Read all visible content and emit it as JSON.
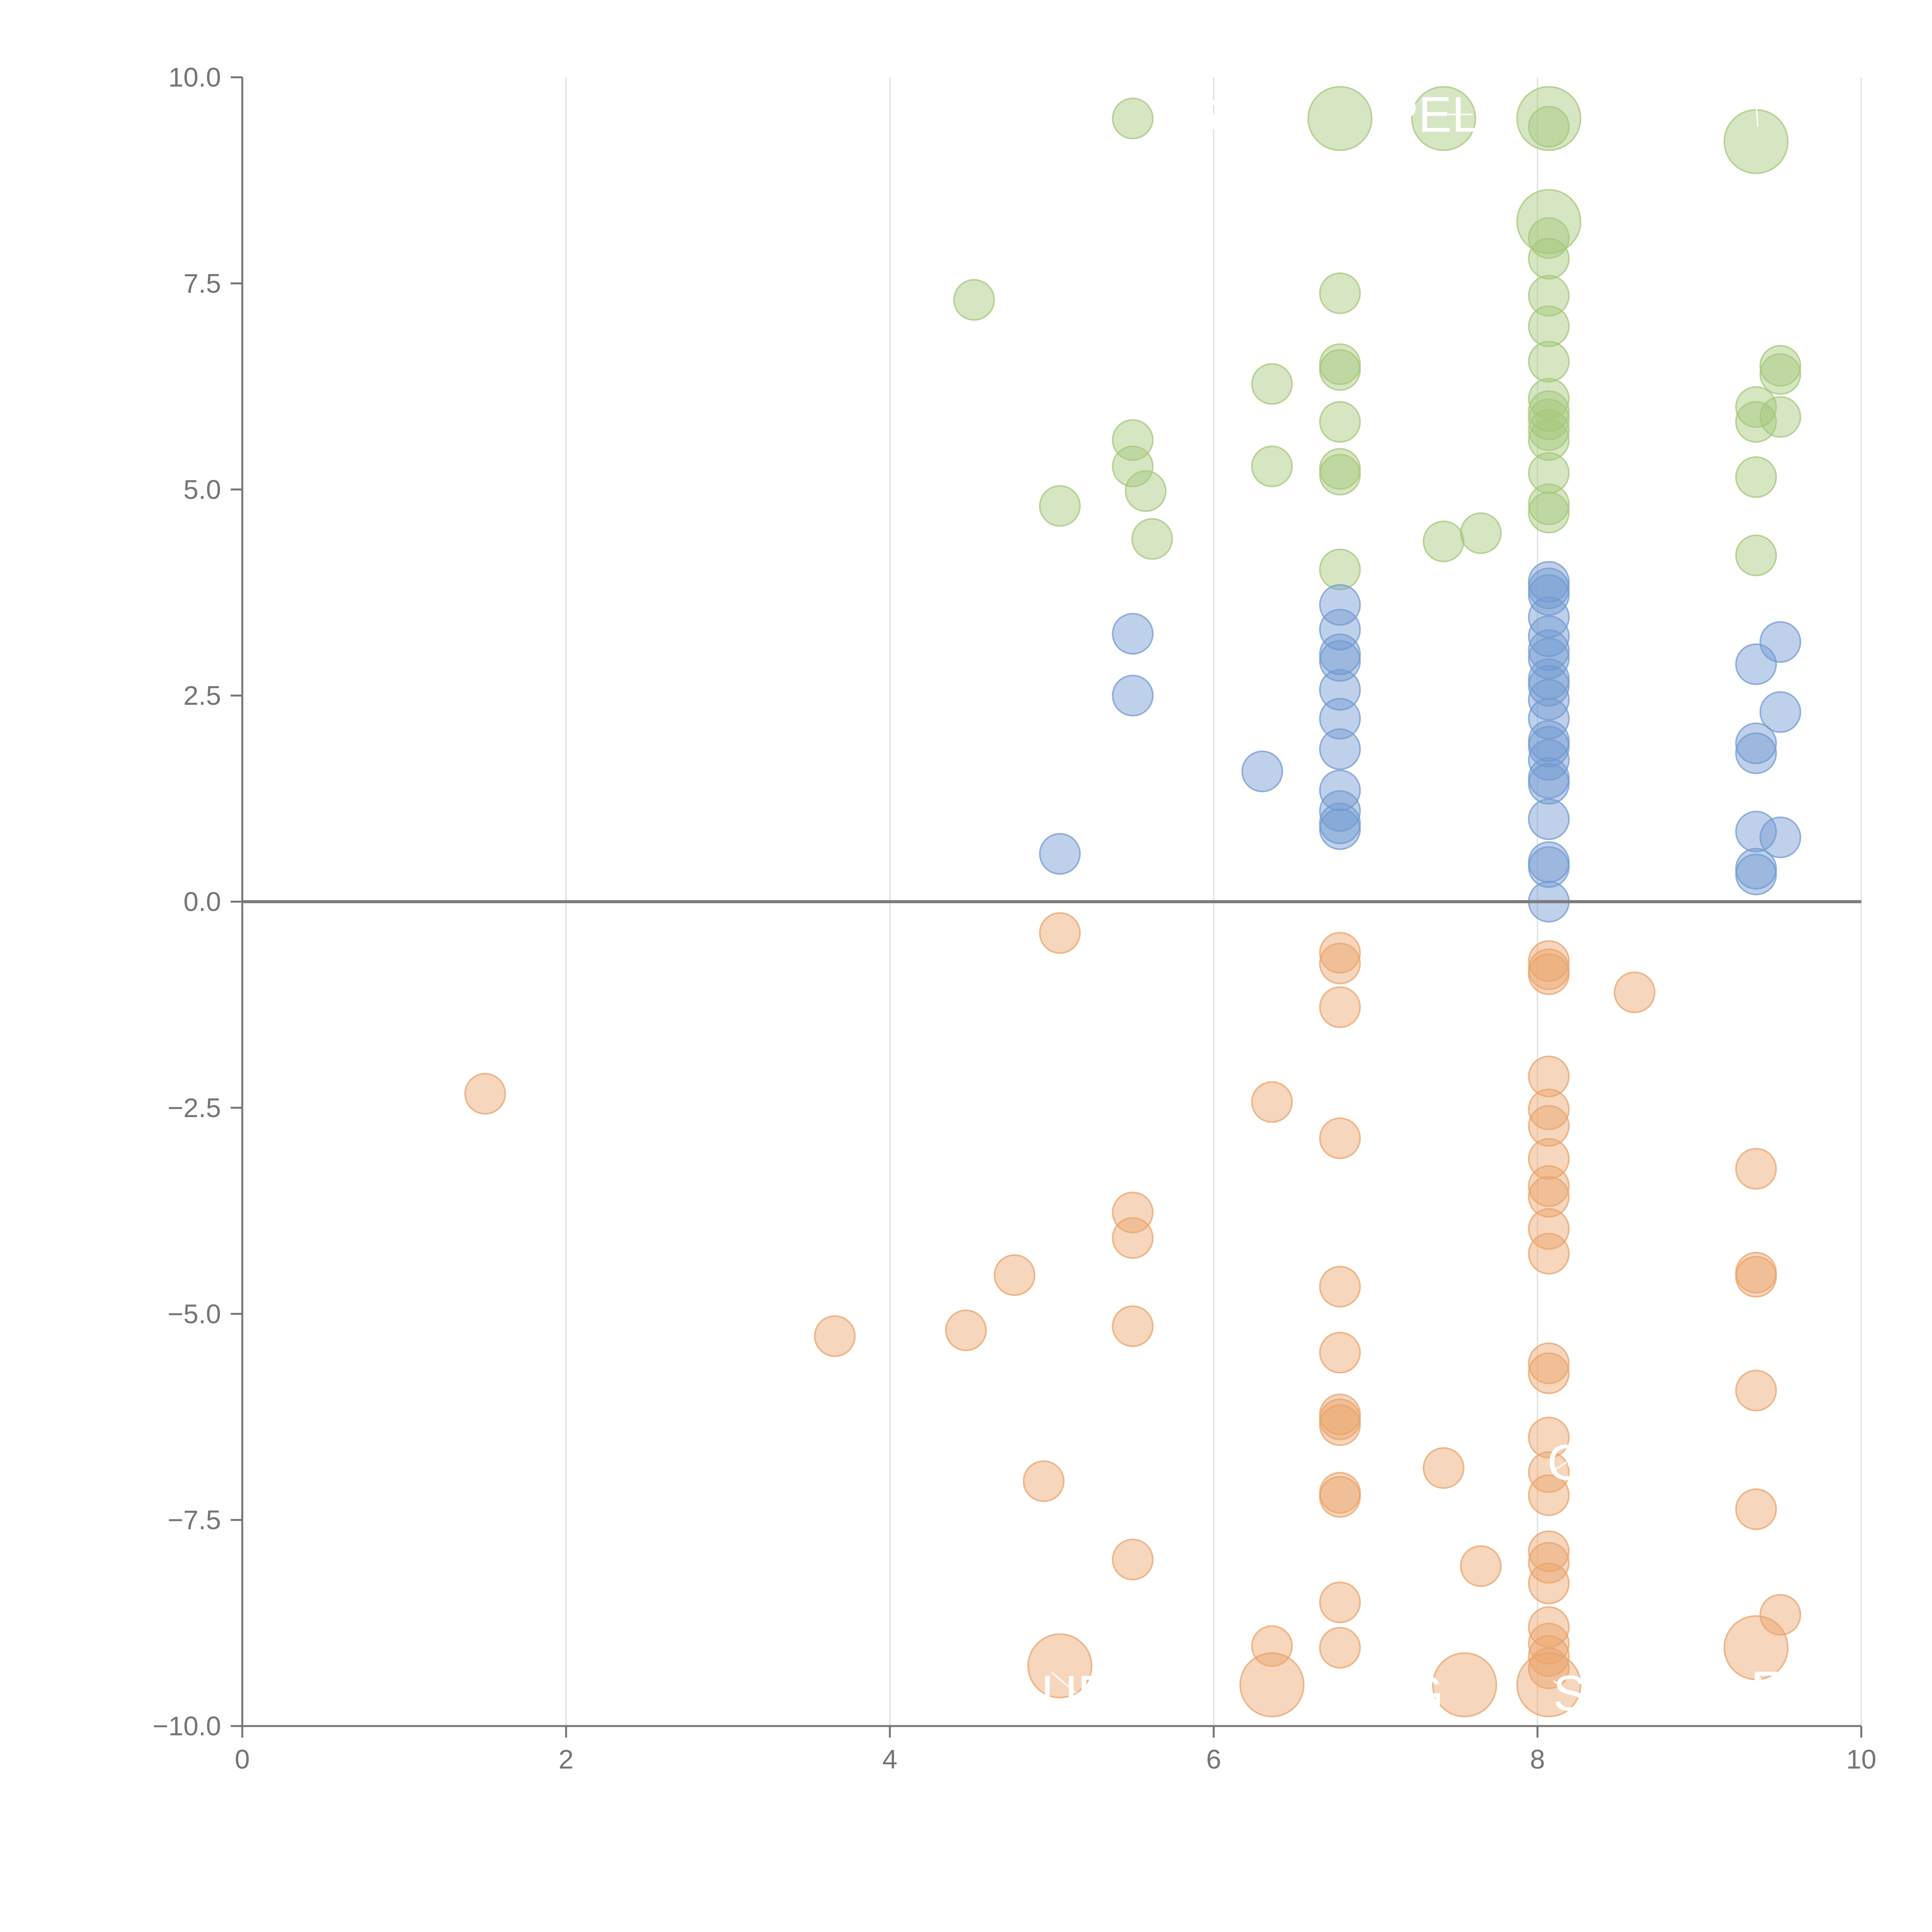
{
  "chart_data": {
    "type": "scatter",
    "title": "",
    "xlabel": "",
    "ylabel": "",
    "xlim": [
      0,
      10
    ],
    "ylim": [
      -10,
      10
    ],
    "grid": "vertical",
    "x_ticks": [
      0,
      2,
      4,
      6,
      8,
      10
    ],
    "y_ticks": [
      -10,
      -7.5,
      -5,
      -2.5,
      0,
      2.5,
      5,
      7.5,
      10
    ],
    "x_tick_labels": [
      "0",
      "2",
      "4",
      "6",
      "8",
      "10"
    ],
    "y_tick_labels": [
      "−10.0",
      "−7.5",
      "−5.0",
      "−2.5",
      "0.0",
      "2.5",
      "5.0",
      "7.5",
      "10.0"
    ],
    "colors": {
      "positive_high": "#a5c77b",
      "positive_low": "#7199d1",
      "negative": "#eaa36a",
      "axis": "#757575",
      "zero_line": "#7b7b7b",
      "grid": "#dddddd"
    },
    "series": [
      {
        "name": "positive_high",
        "color": "#a5c77b",
        "points": [
          {
            "x": 5.5,
            "y": 9.5,
            "size": 1
          },
          {
            "x": 6.78,
            "y": 9.5,
            "size": 2.5
          },
          {
            "x": 7.42,
            "y": 9.5,
            "size": 2.5
          },
          {
            "x": 8.07,
            "y": 9.5,
            "size": 2.5
          },
          {
            "x": 8.07,
            "y": 9.4,
            "size": 1
          },
          {
            "x": 9.35,
            "y": 9.22,
            "size": 2.5
          },
          {
            "x": 8.07,
            "y": 8.25,
            "size": 2.5
          },
          {
            "x": 8.07,
            "y": 8.05,
            "size": 1
          },
          {
            "x": 8.07,
            "y": 7.8,
            "size": 1
          },
          {
            "x": 4.52,
            "y": 7.3,
            "size": 1
          },
          {
            "x": 6.78,
            "y": 7.38,
            "size": 1
          },
          {
            "x": 8.07,
            "y": 7.35,
            "size": 1
          },
          {
            "x": 8.07,
            "y": 6.98,
            "size": 1
          },
          {
            "x": 8.07,
            "y": 6.55,
            "size": 1
          },
          {
            "x": 6.78,
            "y": 6.52,
            "size": 1
          },
          {
            "x": 6.78,
            "y": 6.45,
            "size": 1
          },
          {
            "x": 9.5,
            "y": 6.5,
            "size": 1
          },
          {
            "x": 9.5,
            "y": 6.4,
            "size": 1
          },
          {
            "x": 6.36,
            "y": 6.28,
            "size": 1
          },
          {
            "x": 8.07,
            "y": 6.1,
            "size": 1
          },
          {
            "x": 8.07,
            "y": 5.95,
            "size": 1
          },
          {
            "x": 8.07,
            "y": 5.85,
            "size": 1
          },
          {
            "x": 9.35,
            "y": 6.0,
            "size": 1
          },
          {
            "x": 9.35,
            "y": 5.82,
            "size": 1
          },
          {
            "x": 9.5,
            "y": 5.88,
            "size": 1
          },
          {
            "x": 6.78,
            "y": 5.82,
            "size": 1
          },
          {
            "x": 8.07,
            "y": 5.72,
            "size": 1
          },
          {
            "x": 8.07,
            "y": 5.6,
            "size": 1
          },
          {
            "x": 5.5,
            "y": 5.6,
            "size": 1
          },
          {
            "x": 5.5,
            "y": 5.28,
            "size": 1
          },
          {
            "x": 6.36,
            "y": 5.28,
            "size": 1
          },
          {
            "x": 6.78,
            "y": 5.25,
            "size": 1
          },
          {
            "x": 6.78,
            "y": 5.18,
            "size": 1
          },
          {
            "x": 8.07,
            "y": 5.2,
            "size": 1
          },
          {
            "x": 9.35,
            "y": 5.15,
            "size": 1
          },
          {
            "x": 5.58,
            "y": 4.98,
            "size": 1
          },
          {
            "x": 5.05,
            "y": 4.8,
            "size": 1
          },
          {
            "x": 8.07,
            "y": 4.82,
            "size": 1
          },
          {
            "x": 8.07,
            "y": 4.72,
            "size": 1
          },
          {
            "x": 7.65,
            "y": 4.47,
            "size": 1
          },
          {
            "x": 5.62,
            "y": 4.4,
            "size": 1
          },
          {
            "x": 7.42,
            "y": 4.37,
            "size": 1
          },
          {
            "x": 9.35,
            "y": 4.2,
            "size": 1
          },
          {
            "x": 6.78,
            "y": 4.03,
            "size": 1
          }
        ]
      },
      {
        "name": "positive_low",
        "color": "#7199d1",
        "points": [
          {
            "x": 8.07,
            "y": 3.88,
            "size": 1
          },
          {
            "x": 8.07,
            "y": 3.8,
            "size": 1
          },
          {
            "x": 8.07,
            "y": 3.72,
            "size": 1
          },
          {
            "x": 6.78,
            "y": 3.6,
            "size": 1
          },
          {
            "x": 8.07,
            "y": 3.45,
            "size": 1
          },
          {
            "x": 6.78,
            "y": 3.3,
            "size": 1
          },
          {
            "x": 5.5,
            "y": 3.25,
            "size": 1
          },
          {
            "x": 8.07,
            "y": 3.22,
            "size": 1
          },
          {
            "x": 9.5,
            "y": 3.15,
            "size": 1
          },
          {
            "x": 8.07,
            "y": 3.05,
            "size": 1
          },
          {
            "x": 6.78,
            "y": 3.0,
            "size": 1
          },
          {
            "x": 6.78,
            "y": 2.92,
            "size": 1
          },
          {
            "x": 8.07,
            "y": 2.95,
            "size": 1
          },
          {
            "x": 9.35,
            "y": 2.88,
            "size": 1
          },
          {
            "x": 8.07,
            "y": 2.7,
            "size": 1
          },
          {
            "x": 8.07,
            "y": 2.62,
            "size": 1
          },
          {
            "x": 6.78,
            "y": 2.57,
            "size": 1
          },
          {
            "x": 5.5,
            "y": 2.5,
            "size": 1
          },
          {
            "x": 8.07,
            "y": 2.45,
            "size": 1
          },
          {
            "x": 9.5,
            "y": 2.3,
            "size": 1
          },
          {
            "x": 6.78,
            "y": 2.22,
            "size": 1
          },
          {
            "x": 8.07,
            "y": 2.22,
            "size": 1
          },
          {
            "x": 8.07,
            "y": 1.95,
            "size": 1
          },
          {
            "x": 8.07,
            "y": 1.88,
            "size": 1
          },
          {
            "x": 9.35,
            "y": 1.92,
            "size": 1
          },
          {
            "x": 6.78,
            "y": 1.85,
            "size": 1
          },
          {
            "x": 9.35,
            "y": 1.8,
            "size": 1
          },
          {
            "x": 8.07,
            "y": 1.72,
            "size": 1
          },
          {
            "x": 6.3,
            "y": 1.58,
            "size": 1
          },
          {
            "x": 8.07,
            "y": 1.5,
            "size": 1
          },
          {
            "x": 8.07,
            "y": 1.43,
            "size": 1
          },
          {
            "x": 6.78,
            "y": 1.35,
            "size": 1
          },
          {
            "x": 6.78,
            "y": 1.1,
            "size": 1
          },
          {
            "x": 8.07,
            "y": 1.0,
            "size": 1
          },
          {
            "x": 6.78,
            "y": 0.95,
            "size": 1
          },
          {
            "x": 6.78,
            "y": 0.88,
            "size": 1
          },
          {
            "x": 9.35,
            "y": 0.85,
            "size": 1
          },
          {
            "x": 9.5,
            "y": 0.78,
            "size": 1
          },
          {
            "x": 5.05,
            "y": 0.58,
            "size": 1
          },
          {
            "x": 8.07,
            "y": 0.48,
            "size": 1
          },
          {
            "x": 8.07,
            "y": 0.42,
            "size": 1
          },
          {
            "x": 9.35,
            "y": 0.4,
            "size": 1
          },
          {
            "x": 9.35,
            "y": 0.33,
            "size": 1
          },
          {
            "x": 8.07,
            "y": 0.0,
            "size": 1
          }
        ]
      },
      {
        "name": "negative",
        "color": "#eaa36a",
        "points": [
          {
            "x": 5.05,
            "y": -0.38,
            "size": 1
          },
          {
            "x": 6.78,
            "y": -0.62,
            "size": 1
          },
          {
            "x": 6.78,
            "y": -0.75,
            "size": 1
          },
          {
            "x": 8.07,
            "y": -0.72,
            "size": 1
          },
          {
            "x": 8.07,
            "y": -0.82,
            "size": 1
          },
          {
            "x": 8.07,
            "y": -0.88,
            "size": 1
          },
          {
            "x": 8.6,
            "y": -1.1,
            "size": 1
          },
          {
            "x": 6.78,
            "y": -1.28,
            "size": 1
          },
          {
            "x": 8.07,
            "y": -2.12,
            "size": 1
          },
          {
            "x": 1.5,
            "y": -2.33,
            "size": 1
          },
          {
            "x": 6.36,
            "y": -2.43,
            "size": 1
          },
          {
            "x": 8.07,
            "y": -2.52,
            "size": 1
          },
          {
            "x": 8.07,
            "y": -2.72,
            "size": 1
          },
          {
            "x": 6.78,
            "y": -2.87,
            "size": 1
          },
          {
            "x": 8.07,
            "y": -3.12,
            "size": 1
          },
          {
            "x": 9.35,
            "y": -3.24,
            "size": 1
          },
          {
            "x": 8.07,
            "y": -3.45,
            "size": 1
          },
          {
            "x": 8.07,
            "y": -3.58,
            "size": 1
          },
          {
            "x": 5.5,
            "y": -3.77,
            "size": 1
          },
          {
            "x": 8.07,
            "y": -3.97,
            "size": 1
          },
          {
            "x": 5.5,
            "y": -4.08,
            "size": 1
          },
          {
            "x": 8.07,
            "y": -4.27,
            "size": 1
          },
          {
            "x": 9.35,
            "y": -4.5,
            "size": 1
          },
          {
            "x": 9.35,
            "y": -4.55,
            "size": 1
          },
          {
            "x": 4.77,
            "y": -4.53,
            "size": 1
          },
          {
            "x": 6.78,
            "y": -4.67,
            "size": 1
          },
          {
            "x": 5.5,
            "y": -5.15,
            "size": 1
          },
          {
            "x": 4.47,
            "y": -5.2,
            "size": 1
          },
          {
            "x": 3.66,
            "y": -5.27,
            "size": 1
          },
          {
            "x": 6.78,
            "y": -5.47,
            "size": 1
          },
          {
            "x": 8.07,
            "y": -5.6,
            "size": 1
          },
          {
            "x": 8.07,
            "y": -5.72,
            "size": 1
          },
          {
            "x": 9.35,
            "y": -5.93,
            "size": 1
          },
          {
            "x": 6.78,
            "y": -6.22,
            "size": 1
          },
          {
            "x": 6.78,
            "y": -6.28,
            "size": 1
          },
          {
            "x": 6.78,
            "y": -6.35,
            "size": 1
          },
          {
            "x": 8.07,
            "y": -6.5,
            "size": 1
          },
          {
            "x": 7.42,
            "y": -6.87,
            "size": 1
          },
          {
            "x": 8.07,
            "y": -6.92,
            "size": 1
          },
          {
            "x": 4.95,
            "y": -7.03,
            "size": 1
          },
          {
            "x": 6.78,
            "y": -7.17,
            "size": 1
          },
          {
            "x": 6.78,
            "y": -7.22,
            "size": 1
          },
          {
            "x": 8.07,
            "y": -7.2,
            "size": 1
          },
          {
            "x": 9.35,
            "y": -7.37,
            "size": 1
          },
          {
            "x": 8.07,
            "y": -7.88,
            "size": 1
          },
          {
            "x": 8.07,
            "y": -8.02,
            "size": 1
          },
          {
            "x": 5.5,
            "y": -7.98,
            "size": 1
          },
          {
            "x": 7.65,
            "y": -8.06,
            "size": 1
          },
          {
            "x": 8.07,
            "y": -8.27,
            "size": 1
          },
          {
            "x": 6.78,
            "y": -8.5,
            "size": 1
          },
          {
            "x": 9.5,
            "y": -8.65,
            "size": 1
          },
          {
            "x": 8.07,
            "y": -8.8,
            "size": 1
          },
          {
            "x": 6.36,
            "y": -9.03,
            "size": 1
          },
          {
            "x": 6.78,
            "y": -9.05,
            "size": 1
          },
          {
            "x": 8.07,
            "y": -9.0,
            "size": 1
          },
          {
            "x": 8.07,
            "y": -9.15,
            "size": 1
          },
          {
            "x": 9.35,
            "y": -9.05,
            "size": 2.5
          },
          {
            "x": 5.05,
            "y": -9.27,
            "size": 2.5
          },
          {
            "x": 8.07,
            "y": -9.3,
            "size": 1
          },
          {
            "x": 6.36,
            "y": -9.5,
            "size": 2.5
          },
          {
            "x": 7.55,
            "y": -9.5,
            "size": 2.5
          },
          {
            "x": 8.07,
            "y": -9.5,
            "size": 2.5
          }
        ]
      }
    ],
    "annotations": [
      {
        "text": "S",
        "x": 5.93,
        "y": 9.55,
        "tx": 6.2,
        "ty": 9.55
      },
      {
        "text": "PEL",
        "x": 7.35,
        "y": 9.55,
        "tx": 7.6,
        "ty": 9.55
      },
      {
        "text": "'",
        "x": 9.35,
        "y": 9.75,
        "tx": 9.36,
        "ty": 9.4
      },
      {
        "text": "UE",
        "x": 5.15,
        "y": -9.6,
        "tx": 5.0,
        "ty": -9.35
      },
      {
        "text": "G",
        "x": 7.3,
        "y": -9.6,
        "tx": 6.95,
        "ty": -9.55
      },
      {
        "text": "S",
        "x": 8.2,
        "y": -9.6,
        "tx": 8.1,
        "ty": -9.45
      },
      {
        "text": "G",
        "x": 8.18,
        "y": -6.8,
        "tx": 8.1,
        "ty": -6.9
      },
      {
        "text": "E",
        "x": 9.42,
        "y": -9.55,
        "tx": 9.35,
        "ty": -9.35
      }
    ]
  }
}
